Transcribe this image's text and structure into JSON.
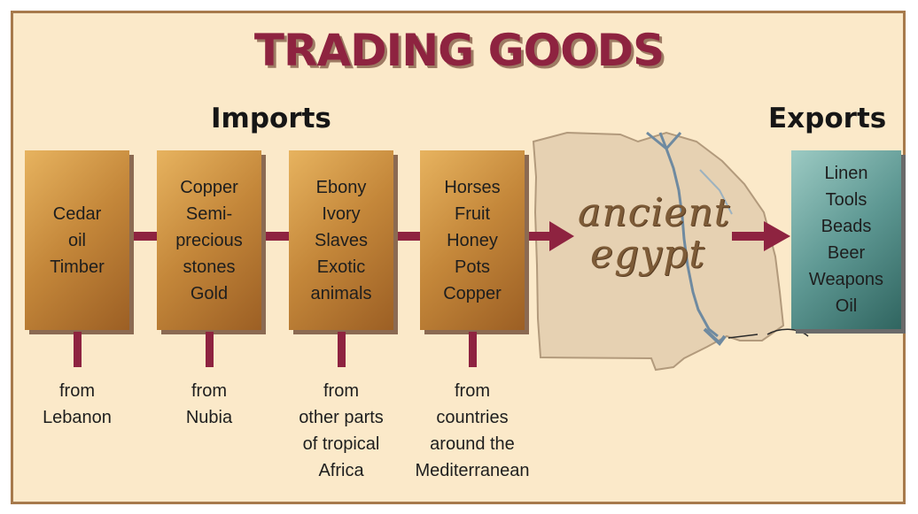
{
  "title": "TRADING GOODS",
  "imports_heading": "Imports",
  "exports_heading": "Exports",
  "imports": [
    {
      "goods": [
        "Cedar",
        "oil",
        "Timber"
      ],
      "origin": [
        "from",
        "Lebanon"
      ]
    },
    {
      "goods": [
        "Copper",
        "Semi-",
        "precious",
        "stones",
        "Gold"
      ],
      "origin": [
        "from",
        "Nubia"
      ]
    },
    {
      "goods": [
        "Ebony",
        "Ivory",
        "Slaves",
        "Exotic",
        "animals"
      ],
      "origin": [
        "from",
        "other parts",
        "of tropical",
        "Africa"
      ]
    },
    {
      "goods": [
        "Horses",
        "Fruit",
        "Honey",
        "Pots",
        "Copper"
      ],
      "origin": [
        "from",
        "countries",
        "around the",
        "Mediterranean"
      ]
    }
  ],
  "center_label": {
    "line1": "ancient",
    "line2": "egypt"
  },
  "exports": [
    "Linen",
    "Tools",
    "Beads",
    "Beer",
    "Weapons",
    "Oil"
  ],
  "colors": {
    "background": "#fbe9c9",
    "title": "#8e2340",
    "connector": "#8e2340",
    "import_box": "#c4873a",
    "export_box": "#5e9893"
  }
}
